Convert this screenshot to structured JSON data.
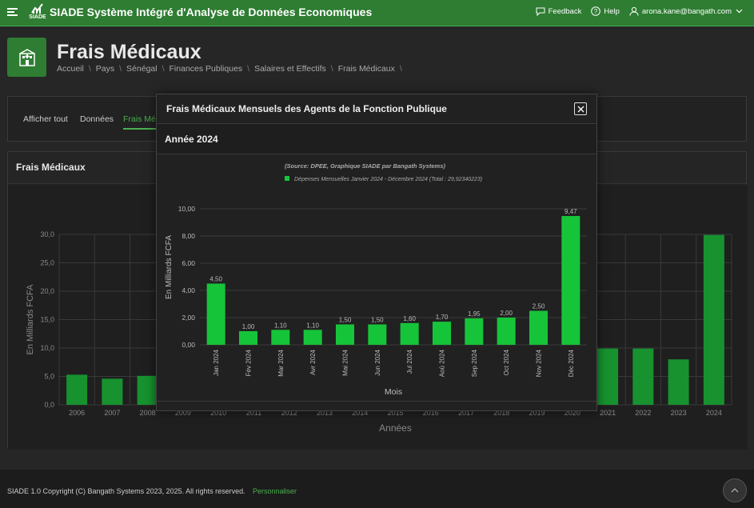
{
  "topbar": {
    "logo_text": "SIADE",
    "app_title": "SIADE Système Intégré d'Analyse de Données Economiques",
    "feedback": "Feedback",
    "help": "Help",
    "user": "arona.kane@bangath.com"
  },
  "header": {
    "title": "Frais Médicaux",
    "breadcrumb": [
      "Accueil",
      "Pays",
      "Sénégal",
      "Finances Publiques",
      "Salaires et Effectifs",
      "Frais Médicaux"
    ]
  },
  "tabs": [
    "Afficher tout",
    "Données",
    "Frais Mé"
  ],
  "main_card": {
    "title": "Frais Médicaux"
  },
  "footer": {
    "copyright": "SIADE 1.0 Copyright (C) Bangath Systems 2023, 2025. All rights reserved.",
    "link": "Personnaliser"
  },
  "modal": {
    "title": "Frais Médicaux Mensuels des Agents de la Fonction Publique",
    "subtitle": "Année 2024"
  },
  "colors": {
    "accent": "#4caf50",
    "bar_bright": "#16c43a",
    "bar_dark": "#17922f",
    "topbar": "#2e7d32"
  },
  "icons": [
    "menu-icon",
    "logo-icon",
    "feedback-icon",
    "help-icon",
    "user-icon",
    "chevron-down-icon",
    "hospital-icon",
    "close-icon",
    "chevron-up-icon"
  ],
  "chart_data": [
    {
      "type": "bar",
      "id": "annual",
      "xlabel": "Années",
      "ylabel": "En Milliards FCFA",
      "ylim": [
        0,
        30
      ],
      "yticks": [
        "0,0",
        "5,0",
        "10,0",
        "15,0",
        "20,0",
        "25,0",
        "30,0"
      ],
      "categories": [
        "2006",
        "2007",
        "2008",
        "2009",
        "2010",
        "2011",
        "2012",
        "2013",
        "2014",
        "2015",
        "2016",
        "2017",
        "2018",
        "2019",
        "2020",
        "2021",
        "2022",
        "2023",
        "2024"
      ],
      "values": [
        5.3,
        4.6,
        5.1,
        null,
        null,
        null,
        null,
        null,
        null,
        null,
        null,
        null,
        null,
        null,
        null,
        9.9,
        9.9,
        8.0,
        29.9
      ],
      "grid": true
    },
    {
      "type": "bar",
      "id": "monthly",
      "source": "(Source: DPEE, Graphique SIADE par Bangath Systems)",
      "legend": "Dépenses Mensuelles Janvier 2024 - Décembre 2024 (Total : 29,92340223)",
      "xlabel": "Mois",
      "ylabel": "En Milliards FCFA",
      "ylim": [
        0,
        10
      ],
      "yticks": [
        "0,00",
        "2,00",
        "4,00",
        "6,00",
        "8,00",
        "10,00"
      ],
      "categories": [
        "Jan 2024",
        "Fév 2024",
        "Mar 2024",
        "Avr 2024",
        "Mai 2024",
        "Jun 2024",
        "Jul 2024",
        "Aoû 2024",
        "Sep 2024",
        "Oct 2024",
        "Nov 2024",
        "Déc 2024"
      ],
      "values": [
        4.5,
        1.0,
        1.1,
        1.1,
        1.5,
        1.5,
        1.6,
        1.7,
        1.95,
        2.0,
        2.5,
        9.47
      ],
      "labels": [
        "4,50",
        "1,00",
        "1,10",
        "1,10",
        "1,50",
        "1,50",
        "1,60",
        "1,70",
        "1,95",
        "2,00",
        "2,50",
        "9,47"
      ],
      "grid": true
    }
  ]
}
